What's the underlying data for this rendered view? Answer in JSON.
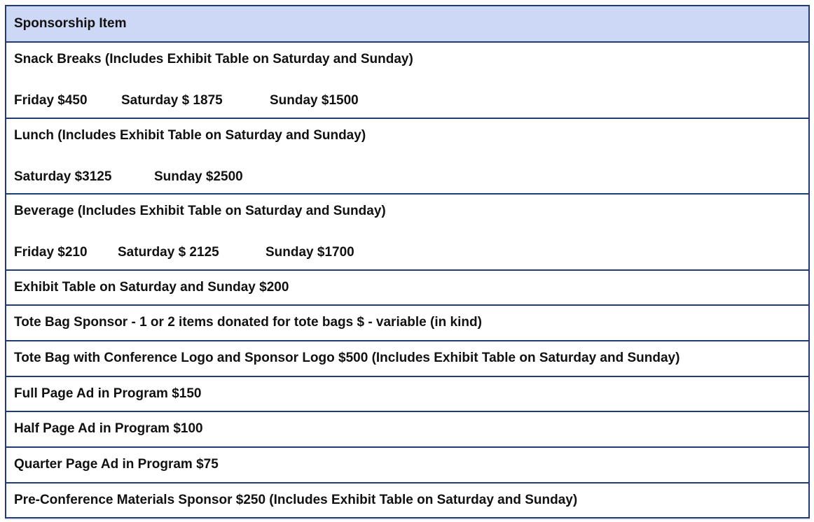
{
  "header": "Sponsorship Item",
  "rows": [
    {
      "title": "Snack Breaks (Includes Exhibit Table on Saturday and Sunday)",
      "prices": [
        "Friday $450",
        "Saturday $ 1875",
        "Sunday $1500"
      ]
    },
    {
      "title": "Lunch (Includes Exhibit Table on Saturday and Sunday)",
      "prices": [
        "Saturday $3125",
        "Sunday $2500"
      ]
    },
    {
      "title": "Beverage (Includes Exhibit Table on Saturday and Sunday)",
      "prices": [
        "Friday $210",
        "Saturday $ 2125",
        "Sunday $1700"
      ]
    },
    {
      "title": "Exhibit Table on Saturday and Sunday $200"
    },
    {
      "title": "Tote Bag Sponsor - 1 or 2 items donated for tote bags $ - variable (in kind)"
    },
    {
      "title": "Tote Bag with Conference Logo and Sponsor Logo $500 (Includes Exhibit Table on Saturday and Sunday)"
    },
    {
      "title": "Full Page Ad in Program $150"
    },
    {
      "title": "Half Page Ad in Program $100"
    },
    {
      "title": "Quarter Page Ad in Program $75"
    },
    {
      "title": "Pre-Conference Materials Sponsor $250 (Includes Exhibit Table on Saturday and Sunday)"
    }
  ]
}
